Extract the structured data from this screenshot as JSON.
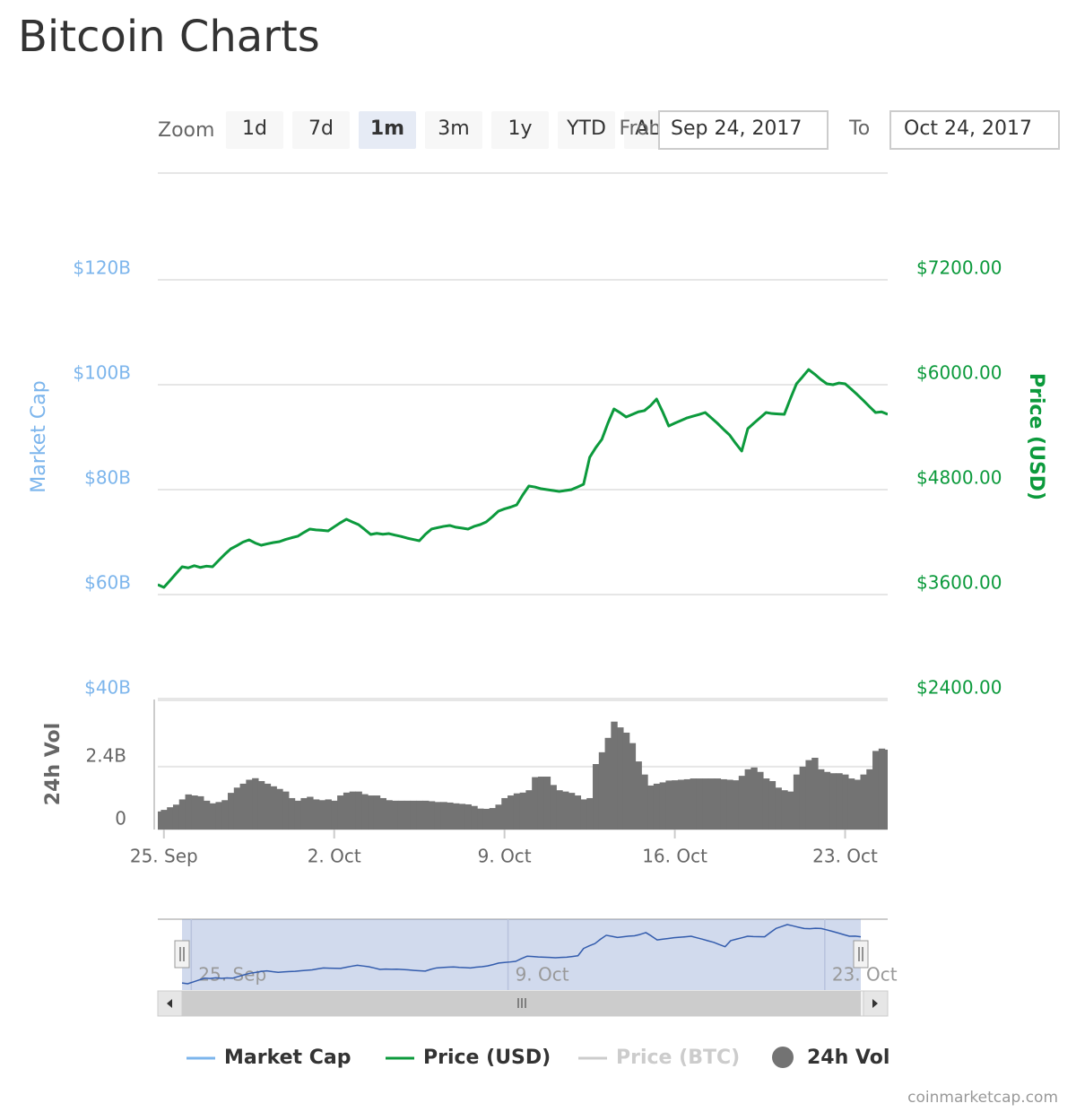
{
  "title": "Bitcoin Charts",
  "range_selector": {
    "zoom_label": "Zoom",
    "buttons": [
      "1d",
      "7d",
      "1m",
      "3m",
      "1y",
      "YTD",
      "ALL"
    ],
    "selected": 2,
    "from_label": "From",
    "from": "Sep 24, 2017",
    "to_label": "To",
    "to": "Oct 24, 2017"
  },
  "chart_data": {
    "type": "line",
    "categories": [
      null,
      "25. Sep",
      null,
      null,
      null,
      null,
      null,
      null,
      null,
      null,
      null,
      null,
      null,
      null,
      null,
      null,
      null,
      null,
      null,
      null,
      null,
      null,
      null,
      null,
      null,
      null,
      null,
      null,
      null,
      "2. Oct",
      null,
      null,
      null,
      null,
      null,
      null,
      null,
      null,
      null,
      null,
      null,
      null,
      null,
      null,
      null,
      null,
      null,
      null,
      null,
      null,
      null,
      null,
      null,
      null,
      null,
      null,
      null,
      "9. Oct",
      null,
      null,
      null,
      null,
      null,
      null,
      null,
      null,
      null,
      null,
      null,
      null,
      null,
      null,
      null,
      null,
      null,
      null,
      null,
      null,
      null,
      null,
      null,
      null,
      null,
      null,
      null,
      "16. Oct",
      null,
      null,
      null,
      null,
      null,
      null,
      null,
      null,
      null,
      null,
      null,
      null,
      null,
      null,
      null,
      null,
      null,
      null,
      null,
      null,
      null,
      null,
      null,
      null,
      null,
      null,
      null,
      "23. Oct",
      null,
      null,
      null,
      null,
      null,
      null,
      null
    ],
    "ylabel": "Market Cap",
    "ylim": [
      40,
      140
    ],
    "yticks": [
      {
        "value": 40,
        "label": "$40B"
      },
      {
        "value": 60,
        "label": "$60B"
      },
      {
        "value": 80,
        "label": "$80B"
      },
      {
        "value": 100,
        "label": "$100B"
      },
      {
        "value": 120,
        "label": "$120B"
      }
    ],
    "y2label": "Price (USD)",
    "y2lim": [
      2400,
      8400
    ],
    "y2ticks": [
      {
        "value": 2400,
        "label": "$2400.00"
      },
      {
        "value": 3600,
        "label": "$3600.00"
      },
      {
        "value": 4800,
        "label": "$4800.00"
      },
      {
        "value": 6000,
        "label": "$6000.00"
      },
      {
        "value": 7200,
        "label": "$7200.00"
      }
    ],
    "y3label": "24h Vol",
    "y3lim": [
      0,
      5
    ],
    "y3ticks": [
      0,
      {
        "value": 2.4,
        "label": "2.4B"
      }
    ],
    "grid": true,
    "series": [
      {
        "name": "Market Cap",
        "color": "#7cb5ec",
        "values": [
          61.9,
          61.4,
          62.7,
          64.0,
          65.3,
          65.1,
          65.5,
          65.2,
          65.4,
          65.3,
          66.5,
          67.7,
          68.7,
          69.3,
          70.0,
          70.4,
          69.8,
          69.4,
          69.7,
          69.9,
          70.1,
          70.5,
          70.8,
          71.1,
          71.8,
          72.5,
          72.3,
          72.3,
          72.1,
          72.9,
          73.7,
          74.4,
          73.8,
          73.3,
          72.4,
          71.5,
          71.7,
          71.5,
          71.6,
          71.3,
          71.1,
          70.8,
          70.5,
          70.3,
          71.5,
          72.5,
          72.8,
          73.0,
          73.2,
          72.8,
          72.7,
          72.5,
          73.0,
          73.3,
          73.9,
          74.8,
          75.9,
          76.3,
          76.7,
          77.1,
          79.0,
          80.7,
          80.5,
          80.2,
          80.0,
          79.8,
          79.7,
          79.8,
          80.0,
          80.5,
          81.0,
          86.2,
          88.0,
          89.6,
          92.7,
          95.4,
          94.7,
          93.9,
          94.3,
          94.8,
          95.1,
          96.0,
          97.3,
          94.8,
          92.1,
          92.7,
          93.2,
          93.7,
          94.0,
          94.3,
          94.7,
          93.7,
          92.7,
          91.5,
          90.4,
          88.8,
          87.4,
          91.6,
          92.7,
          93.7,
          94.7,
          94.5,
          94.4,
          94.4,
          97.3,
          100.2,
          101.5,
          102.9,
          102.0,
          101.0,
          100.2,
          100.0,
          100.3,
          100.2,
          99.2,
          98.1,
          97.0,
          95.8,
          94.7,
          94.8,
          94.4
        ]
      },
      {
        "name": "Price (USD)",
        "color": "#0c9a3c",
        "axis": "y2",
        "values": [
          3713,
          3682,
          3760,
          3840,
          3918,
          3905,
          3930,
          3910,
          3925,
          3918,
          3990,
          4060,
          4123,
          4160,
          4200,
          4226,
          4190,
          4164,
          4180,
          4195,
          4205,
          4230,
          4250,
          4267,
          4310,
          4349,
          4340,
          4335,
          4328,
          4375,
          4420,
          4461,
          4430,
          4400,
          4345,
          4287,
          4300,
          4290,
          4297,
          4280,
          4265,
          4245,
          4230,
          4215,
          4290,
          4349,
          4365,
          4380,
          4390,
          4370,
          4360,
          4349,
          4380,
          4400,
          4431,
          4490,
          4554,
          4580,
          4600,
          4626,
          4740,
          4841,
          4830,
          4810,
          4800,
          4790,
          4779,
          4790,
          4800,
          4830,
          4861,
          5169,
          5280,
          5374,
          5560,
          5723,
          5680,
          5631,
          5660,
          5690,
          5703,
          5760,
          5836,
          5690,
          5528,
          5560,
          5590,
          5620,
          5640,
          5660,
          5682,
          5620,
          5559,
          5490,
          5426,
          5330,
          5241,
          5497,
          5560,
          5620,
          5682,
          5670,
          5665,
          5661,
          5840,
          6010,
          6090,
          6174,
          6120,
          6060,
          6010,
          6000,
          6020,
          6010,
          5950,
          5887,
          5820,
          5750,
          5682,
          5690,
          5661
        ]
      },
      {
        "name": "Price (BTC)",
        "color": "#cccccc",
        "visible": false
      },
      {
        "name": "24h Vol",
        "color": "#737373",
        "axis": "y3",
        "values": [
          0.69,
          0.75,
          0.85,
          0.95,
          1.15,
          1.34,
          1.3,
          1.27,
          1.1,
          1.0,
          1.05,
          1.12,
          1.4,
          1.6,
          1.75,
          1.9,
          1.96,
          1.85,
          1.75,
          1.65,
          1.55,
          1.45,
          1.2,
          1.1,
          1.2,
          1.25,
          1.15,
          1.12,
          1.15,
          1.1,
          1.3,
          1.41,
          1.45,
          1.45,
          1.35,
          1.3,
          1.3,
          1.2,
          1.12,
          1.1,
          1.1,
          1.1,
          1.1,
          1.1,
          1.1,
          1.08,
          1.05,
          1.05,
          1.03,
          1.0,
          0.98,
          0.96,
          0.9,
          0.8,
          0.79,
          0.82,
          0.95,
          1.2,
          1.3,
          1.38,
          1.41,
          1.5,
          2.0,
          2.02,
          2.02,
          1.7,
          1.5,
          1.45,
          1.4,
          1.3,
          1.15,
          1.2,
          2.5,
          2.95,
          3.5,
          4.12,
          3.9,
          3.7,
          3.3,
          2.6,
          2.1,
          1.68,
          1.75,
          1.8,
          1.87,
          1.88,
          1.9,
          1.92,
          1.95,
          1.95,
          1.95,
          1.95,
          1.95,
          1.92,
          1.9,
          1.88,
          2.05,
          2.3,
          2.37,
          2.2,
          1.95,
          1.85,
          1.6,
          1.5,
          1.45,
          2.1,
          2.4,
          2.65,
          2.74,
          2.3,
          2.2,
          2.15,
          2.15,
          2.1,
          1.95,
          1.9,
          2.1,
          2.3,
          3.0,
          3.09,
          3.05
        ]
      }
    ],
    "navigator": {
      "labels": [
        "25. Sep",
        "9. Oct",
        "23. Oct"
      ]
    }
  },
  "credits": "coinmarketcap.com"
}
